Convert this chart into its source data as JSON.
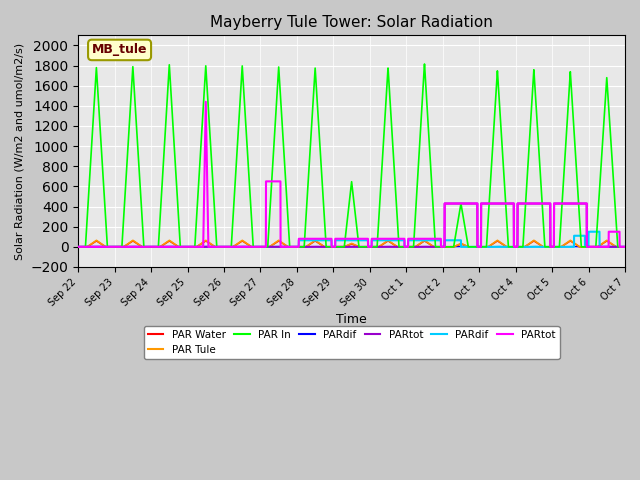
{
  "title": "Mayberry Tule Tower: Solar Radiation",
  "xlabel": "Time",
  "ylabel": "Solar Radiation (W/m2 and umol/m2/s)",
  "ylim": [
    -200,
    2100
  ],
  "yticks": [
    -200,
    0,
    200,
    400,
    600,
    800,
    1000,
    1200,
    1400,
    1600,
    1800,
    2000
  ],
  "fig_facecolor": "#c8c8c8",
  "ax_facecolor": "#e8e8e8",
  "legend_labels": [
    "PAR Water",
    "PAR Tule",
    "PAR In",
    "PARdif",
    "PARtot",
    "PARdif",
    "PARtot"
  ],
  "legend_colors": [
    "#ff0000",
    "#ff9900",
    "#00ff00",
    "#0000ff",
    "#9900cc",
    "#00ccff",
    "#ff00ff"
  ],
  "stamp_text": "MB_tule",
  "stamp_bg": "#ffffcc",
  "stamp_edge": "#999900",
  "stamp_text_color": "#660000",
  "tick_labels": [
    "Sep 22",
    "Sep 23",
    "Sep 24",
    "Sep 25",
    "Sep 26",
    "Sep 27",
    "Sep 28",
    "Sep 29",
    "Sep 30",
    "Oct 1",
    "Oct 2",
    "Oct 3",
    "Oct 4",
    "Oct 5",
    "Oct 6",
    "Oct 7"
  ],
  "n_days": 15
}
